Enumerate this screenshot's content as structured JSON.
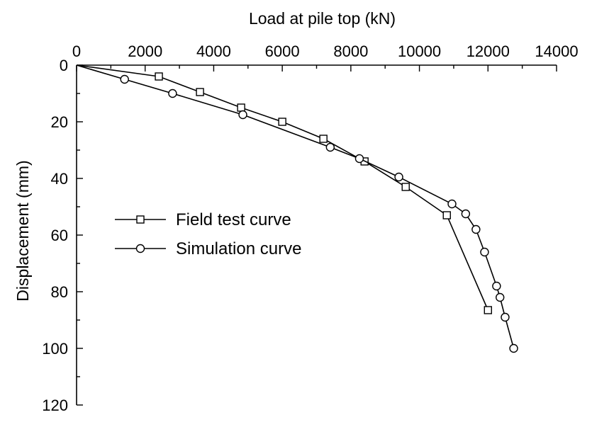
{
  "chart_data": {
    "type": "line",
    "xlabel": "Load at pile top (kN)",
    "ylabel": "Displacement (mm)",
    "xlim": [
      0,
      14000
    ],
    "ylim": [
      0,
      120
    ],
    "x_axis_position": "top",
    "y_axis_inverted": true,
    "x_ticks": [
      0,
      2000,
      4000,
      6000,
      8000,
      10000,
      12000,
      14000
    ],
    "x_tick_labels": [
      "0",
      "2000",
      "4000",
      "6000",
      "8000",
      "10000",
      "12000",
      "14000"
    ],
    "y_ticks": [
      0,
      20,
      40,
      60,
      80,
      100,
      120
    ],
    "y_tick_labels": [
      "0",
      "20",
      "40",
      "60",
      "80",
      "100",
      "120"
    ],
    "grid": false,
    "legend_position": "center-left",
    "series": [
      {
        "name": "Field test curve",
        "marker": "square",
        "color": "#000000",
        "x": [
          0,
          2400,
          3600,
          4800,
          6000,
          7200,
          8400,
          9600,
          10800,
          12000
        ],
        "y": [
          0,
          4,
          9.5,
          15,
          20,
          26,
          34,
          43,
          53,
          86.5
        ]
      },
      {
        "name": "Simulation curve",
        "marker": "circle",
        "color": "#000000",
        "x": [
          0,
          1400,
          2800,
          4850,
          7400,
          8250,
          9400,
          10950,
          11350,
          11650,
          11900,
          12250,
          12350,
          12500,
          12750
        ],
        "y": [
          0,
          5,
          10,
          17.5,
          29,
          33,
          39.5,
          49,
          52.5,
          58,
          66,
          78,
          82,
          89,
          100
        ]
      }
    ]
  }
}
